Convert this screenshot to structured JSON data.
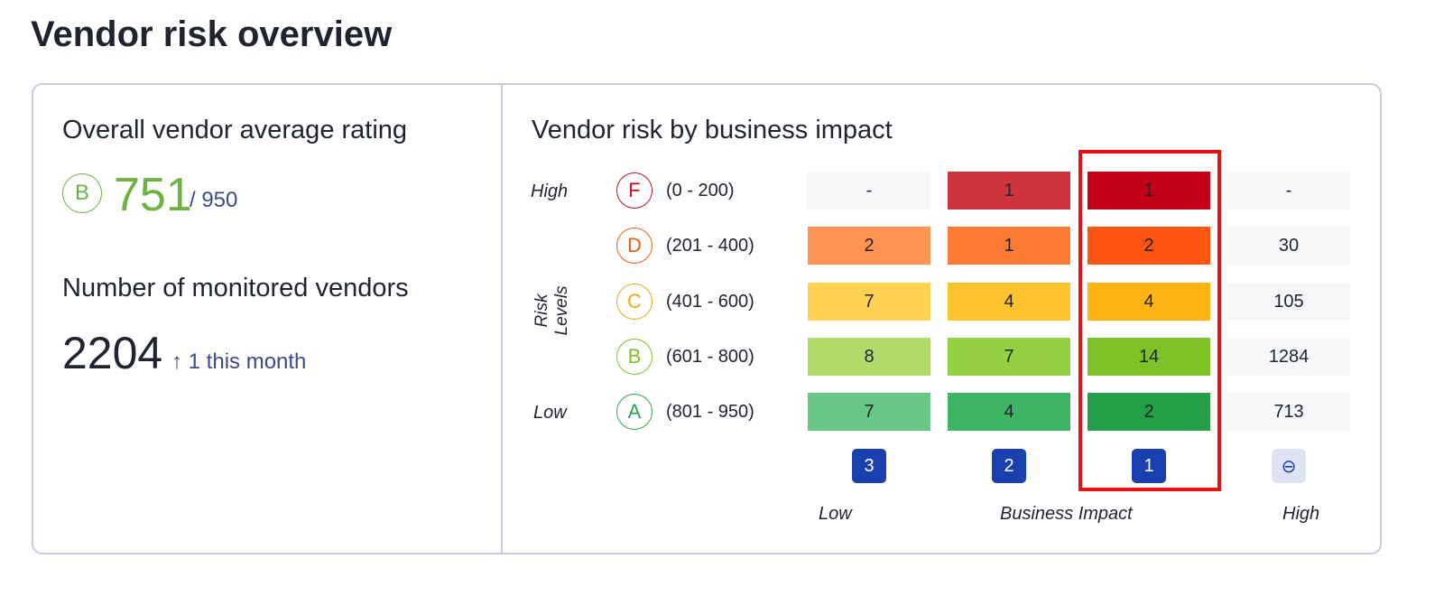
{
  "page_title": "Vendor risk overview",
  "left": {
    "rating_heading": "Overall vendor average rating",
    "rating_grade": "B",
    "rating_value": "751",
    "rating_max": "/ 950",
    "vendors_heading": "Number of monitored vendors",
    "vendor_count": "2204",
    "vendor_change": "↑ 1 this month"
  },
  "matrix": {
    "heading": "Vendor risk by business impact",
    "y_axis_title": "Risk Levels",
    "y_high": "High",
    "y_low": "Low",
    "x_axis_title": "Business Impact",
    "x_low": "Low",
    "x_high": "High",
    "rows": [
      {
        "grade": "F",
        "range": "(0 - 200)",
        "cells": [
          "-",
          "1",
          "1",
          "-"
        ]
      },
      {
        "grade": "D",
        "range": "(201 - 400)",
        "cells": [
          "2",
          "1",
          "2",
          "30"
        ]
      },
      {
        "grade": "C",
        "range": "(401 - 600)",
        "cells": [
          "7",
          "4",
          "4",
          "105"
        ]
      },
      {
        "grade": "B",
        "range": "(601 - 800)",
        "cells": [
          "8",
          "7",
          "14",
          "1284"
        ]
      },
      {
        "grade": "A",
        "range": "(801 - 950)",
        "cells": [
          "7",
          "4",
          "2",
          "713"
        ]
      }
    ],
    "impact_buttons": [
      "3",
      "2",
      "1",
      "⊖"
    ],
    "colors": {
      "grade_F": "#c8101e",
      "grade_D": "#f05a0e",
      "grade_C": "#f3a70f",
      "grade_B": "#7cc12a",
      "grade_A": "#2ea44f",
      "row_F": [
        "#f7f8fa",
        "#ce343e",
        "#c20016",
        "#f7f8fa"
      ],
      "row_D": [
        "#ff9452",
        "#ff7b35",
        "#ff5510",
        "#f7f8fa"
      ],
      "row_C": [
        "#ffd254",
        "#ffc32d",
        "#ffb414",
        "#f7f8fa"
      ],
      "row_B": [
        "#b0dc6b",
        "#94d044",
        "#7cc228",
        "#f7f8fa"
      ],
      "row_A": [
        "#67c786",
        "#3db564",
        "#23a047",
        "#f7f8fa"
      ]
    }
  }
}
